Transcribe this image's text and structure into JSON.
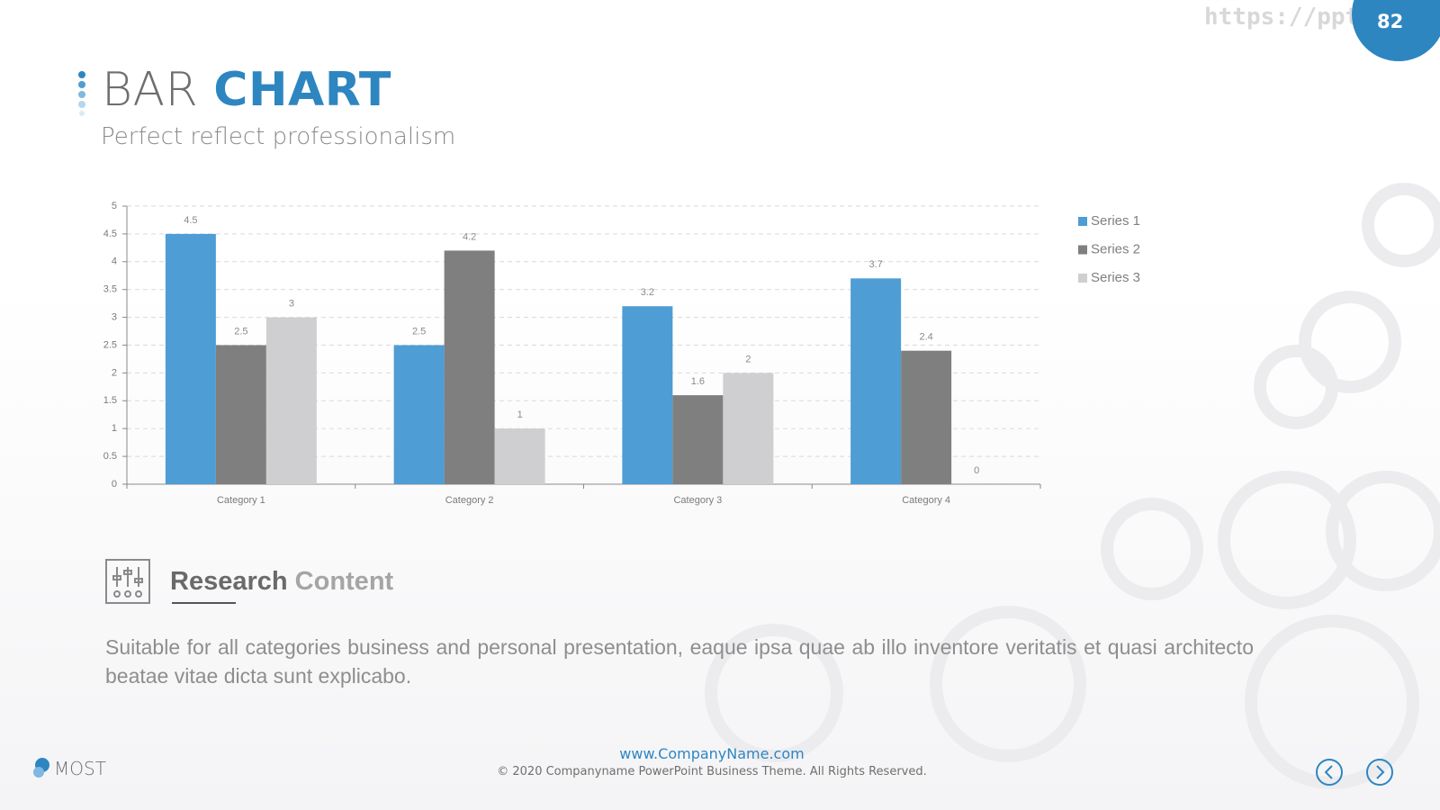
{
  "header": {
    "title_light": "BAR",
    "title_bold": "CHART",
    "subtitle": "Perfect reflect professionalism",
    "watermark": "https://ppt.pkfl",
    "page_number": "82"
  },
  "chart_data": {
    "type": "bar",
    "categories": [
      "Category 1",
      "Category 2",
      "Category 3",
      "Category 4"
    ],
    "series": [
      {
        "name": "Series 1",
        "color": "#4e9dd4",
        "values": [
          4.5,
          2.5,
          3.2,
          3.7
        ]
      },
      {
        "name": "Series 2",
        "color": "#7f7f80",
        "values": [
          2.5,
          4.2,
          1.6,
          2.4
        ]
      },
      {
        "name": "Series 3",
        "color": "#cfcfd1",
        "values": [
          3,
          1,
          2,
          0
        ]
      }
    ],
    "ylim": [
      0,
      5
    ],
    "yticks": [
      0,
      0.5,
      1,
      1.5,
      2,
      2.5,
      3,
      3.5,
      4,
      4.5,
      5
    ],
    "grid": true,
    "legend": "right",
    "data_labels": true
  },
  "section": {
    "heading_bold": "Research",
    "heading_light": "Content",
    "body": "Suitable for all categories business and personal presentation, eaque ipsa quae ab illo inventore veritatis et quasi architecto beatae vitae dicta sunt explicabo."
  },
  "footer": {
    "website": "www.CompanyName.com",
    "copyright": "© 2020 Companyname PowerPoint Business Theme. All Rights Reserved.",
    "logo": "MOST"
  }
}
